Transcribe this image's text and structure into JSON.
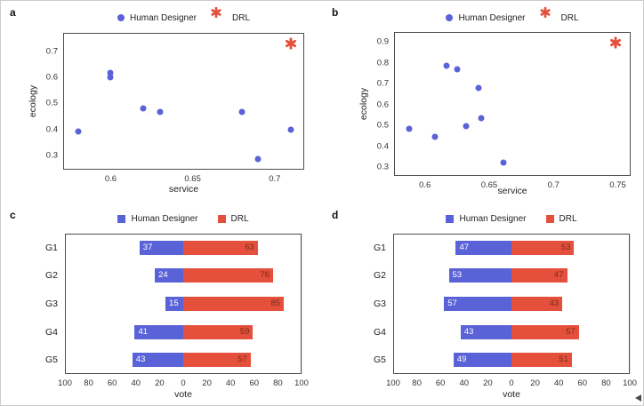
{
  "figure": {
    "panels": [
      {
        "label": "a"
      },
      {
        "label": "b"
      },
      {
        "label": "c"
      },
      {
        "label": "d"
      }
    ]
  },
  "colors": {
    "human_designer": "#5A62D8",
    "drl": "#E4503B",
    "bar_label_on_blue": "#ffffff",
    "bar_label_on_red": "#7B2A1C",
    "grid": "#E8EAF1",
    "axis_border": "#4D4D4D"
  },
  "chart_data": [
    {
      "id": "a",
      "type": "scatter",
      "xlabel": "service",
      "ylabel": "ecology",
      "xlim": [
        0.571,
        0.718
      ],
      "ylim": [
        0.245,
        0.77
      ],
      "xticks": [
        0.6,
        0.65,
        0.7
      ],
      "yticks": [
        0.3,
        0.4,
        0.5,
        0.6,
        0.7
      ],
      "grid": true,
      "legend_position": "top",
      "series": [
        {
          "name": "Human Designer",
          "marker": "circle",
          "color": "#5A62D8",
          "points": [
            [
              0.58,
              0.392
            ],
            [
              0.6,
              0.615
            ],
            [
              0.6,
              0.598
            ],
            [
              0.62,
              0.48
            ],
            [
              0.63,
              0.466
            ],
            [
              0.68,
              0.467
            ],
            [
              0.69,
              0.285
            ],
            [
              0.71,
              0.4
            ]
          ]
        },
        {
          "name": "DRL",
          "marker": "star",
          "color": "#E4503B",
          "points": [
            [
              0.71,
              0.73
            ]
          ]
        }
      ]
    },
    {
      "id": "b",
      "type": "scatter",
      "xlabel": "service",
      "ylabel": "ecology",
      "xlim": [
        0.576,
        0.76
      ],
      "ylim": [
        0.258,
        0.947
      ],
      "xticks": [
        0.6,
        0.65,
        0.7,
        0.75
      ],
      "yticks": [
        0.3,
        0.4,
        0.5,
        0.6,
        0.7,
        0.8,
        0.9
      ],
      "grid": true,
      "legend_position": "top",
      "series": [
        {
          "name": "Human Designer",
          "marker": "circle",
          "color": "#5A62D8",
          "points": [
            [
              0.588,
              0.483
            ],
            [
              0.608,
              0.445
            ],
            [
              0.617,
              0.785
            ],
            [
              0.625,
              0.768
            ],
            [
              0.632,
              0.497
            ],
            [
              0.642,
              0.681
            ],
            [
              0.644,
              0.533
            ],
            [
              0.661,
              0.323
            ]
          ]
        },
        {
          "name": "DRL",
          "marker": "star",
          "color": "#E4503B",
          "points": [
            [
              0.748,
              0.897
            ]
          ]
        }
      ]
    },
    {
      "id": "c",
      "type": "diverging-bar",
      "xlabel": "vote",
      "categories": [
        "G1",
        "G2",
        "G3",
        "G4",
        "G5"
      ],
      "xlim": [
        -100,
        100
      ],
      "xticks": [
        -100,
        -80,
        -60,
        -40,
        -20,
        0,
        20,
        40,
        60,
        80,
        100
      ],
      "grid": true,
      "legend_position": "top",
      "series": [
        {
          "name": "Human Designer",
          "side": "left",
          "color": "#5A62D8",
          "values": [
            37,
            24,
            15,
            41,
            43
          ]
        },
        {
          "name": "DRL",
          "side": "right",
          "color": "#E4503B",
          "values": [
            63,
            76,
            85,
            59,
            57
          ]
        }
      ]
    },
    {
      "id": "d",
      "type": "diverging-bar",
      "xlabel": "vote",
      "categories": [
        "G1",
        "G2",
        "G3",
        "G4",
        "G5"
      ],
      "xlim": [
        -100,
        100
      ],
      "xticks": [
        -100,
        -80,
        -60,
        -40,
        -20,
        0,
        20,
        40,
        60,
        80,
        100
      ],
      "grid": true,
      "legend_position": "top",
      "series": [
        {
          "name": "Human Designer",
          "side": "left",
          "color": "#5A62D8",
          "values": [
            47,
            53,
            57,
            43,
            49
          ]
        },
        {
          "name": "DRL",
          "side": "right",
          "color": "#E4503B",
          "values": [
            53,
            47,
            43,
            57,
            51
          ]
        }
      ]
    }
  ]
}
